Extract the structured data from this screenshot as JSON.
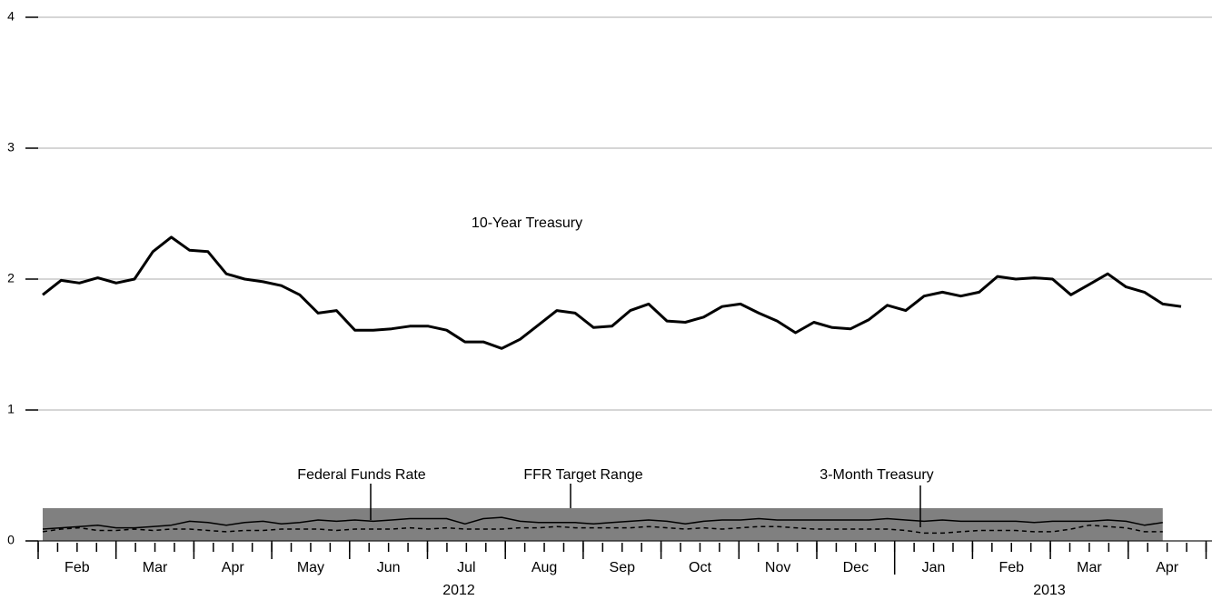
{
  "chart_data": {
    "type": "line",
    "categories": [
      null,
      null,
      null,
      null,
      null,
      null,
      null,
      null,
      null,
      null,
      null,
      null,
      null,
      null,
      null,
      null,
      null,
      null,
      null,
      null,
      null,
      null,
      null,
      null,
      null,
      null,
      null,
      null,
      null,
      null,
      null,
      null,
      null,
      null,
      null,
      null,
      null,
      null,
      null,
      null,
      null,
      null,
      null,
      null,
      null,
      null,
      null,
      null,
      null,
      null,
      null,
      null,
      null,
      null,
      null,
      null,
      null,
      null,
      null,
      null,
      null,
      null,
      null
    ],
    "months": [
      "Feb",
      "Mar",
      "Apr",
      "May",
      "Jun",
      "Jul",
      "Aug",
      "Sep",
      "Oct",
      "Nov",
      "Dec",
      "Jan",
      "Feb",
      "Mar",
      "Apr"
    ],
    "years": [
      "2012",
      "2013"
    ],
    "ylim": [
      0,
      4
    ],
    "yticks": [
      0,
      1,
      2,
      3,
      4
    ],
    "grid": true,
    "band": {
      "name": "FFR Target Range",
      "low": 0,
      "high": 0.25,
      "color": "#808080"
    },
    "series": [
      {
        "name": "10-Year Treasury",
        "color": "#000000",
        "width": 3,
        "dash": false,
        "values": [
          1.88,
          1.99,
          1.97,
          2.01,
          1.97,
          2.0,
          2.21,
          2.32,
          2.22,
          2.21,
          2.04,
          2.0,
          1.98,
          1.95,
          1.88,
          1.74,
          1.76,
          1.61,
          1.61,
          1.62,
          1.64,
          1.64,
          1.61,
          1.52,
          1.52,
          1.47,
          1.54,
          1.65,
          1.76,
          1.74,
          1.63,
          1.64,
          1.76,
          1.81,
          1.68,
          1.67,
          1.71,
          1.79,
          1.81,
          1.74,
          1.68,
          1.59,
          1.67,
          1.63,
          1.62,
          1.69,
          1.8,
          1.76,
          1.87,
          1.9,
          1.87,
          1.9,
          2.02,
          2.0,
          2.01,
          2.0,
          1.88,
          1.96,
          2.04,
          1.94,
          1.9,
          1.81,
          1.79
        ]
      },
      {
        "name": "Federal Funds Rate",
        "color": "#000000",
        "width": 1.5,
        "dash": false,
        "values": [
          0.09,
          0.1,
          0.11,
          0.12,
          0.1,
          0.1,
          0.11,
          0.12,
          0.15,
          0.14,
          0.12,
          0.14,
          0.15,
          0.13,
          0.14,
          0.16,
          0.15,
          0.16,
          0.15,
          0.16,
          0.17,
          0.17,
          0.17,
          0.13,
          0.17,
          0.18,
          0.15,
          0.14,
          0.14,
          0.14,
          0.13,
          0.14,
          0.15,
          0.16,
          0.15,
          0.13,
          0.15,
          0.16,
          0.16,
          0.17,
          0.16,
          0.16,
          0.16,
          0.16,
          0.16,
          0.16,
          0.17,
          0.16,
          0.15,
          0.16,
          0.15,
          0.15,
          0.15,
          0.15,
          0.14,
          0.15,
          0.15,
          0.15,
          0.16,
          0.15,
          0.12,
          0.14,
          null
        ]
      },
      {
        "name": "3-Month Treasury",
        "color": "#000000",
        "width": 1.5,
        "dash": true,
        "values": [
          0.07,
          0.09,
          0.1,
          0.08,
          0.08,
          0.09,
          0.08,
          0.09,
          0.09,
          0.08,
          0.07,
          0.08,
          0.08,
          0.09,
          0.09,
          0.09,
          0.08,
          0.09,
          0.09,
          0.09,
          0.1,
          0.09,
          0.1,
          0.09,
          0.09,
          0.09,
          0.1,
          0.1,
          0.11,
          0.1,
          0.1,
          0.1,
          0.1,
          0.11,
          0.1,
          0.09,
          0.1,
          0.09,
          0.1,
          0.11,
          0.11,
          0.1,
          0.09,
          0.09,
          0.09,
          0.09,
          0.09,
          0.08,
          0.06,
          0.06,
          0.07,
          0.08,
          0.08,
          0.08,
          0.07,
          0.07,
          0.09,
          0.12,
          0.11,
          0.1,
          0.07,
          0.07,
          null
        ]
      }
    ]
  }
}
